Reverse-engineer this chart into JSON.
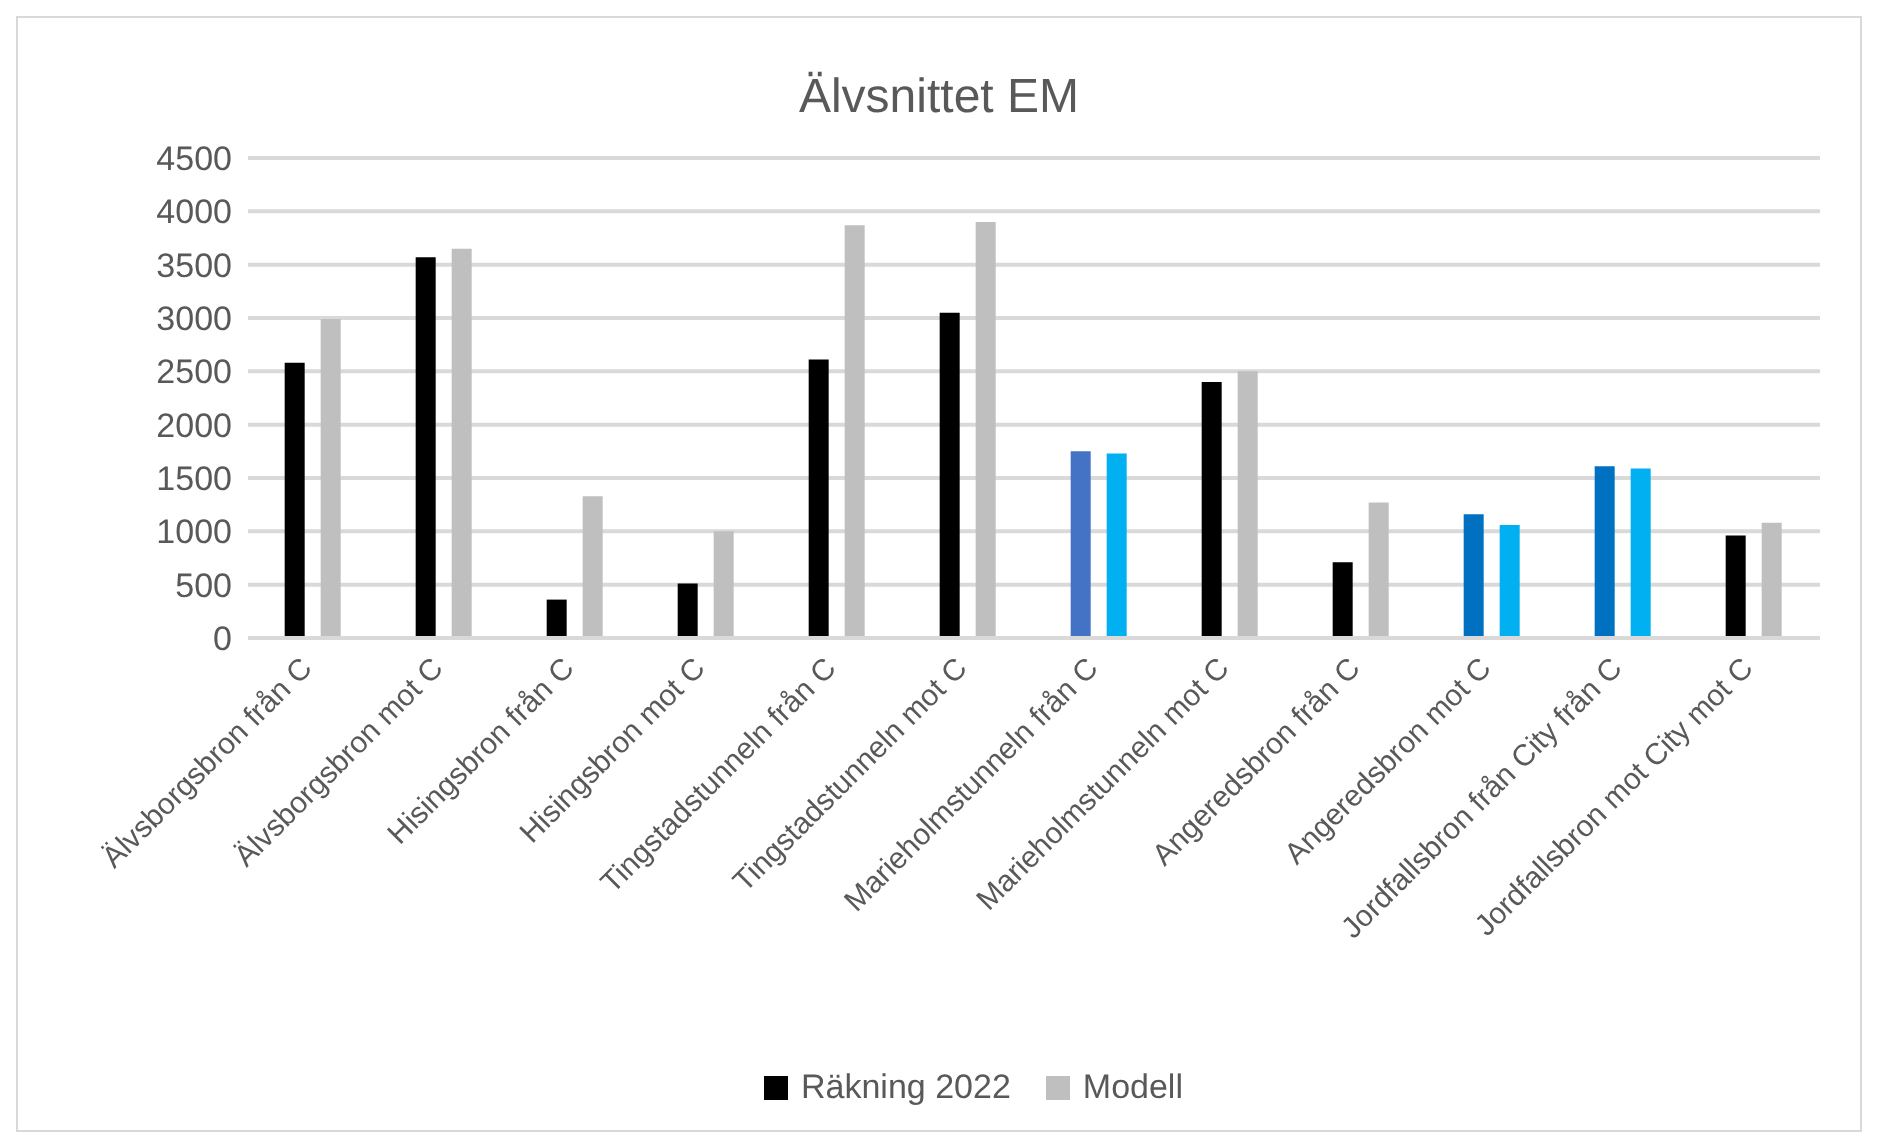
{
  "chart_data": {
    "type": "bar",
    "title": "Älvsnittet EM",
    "categories": [
      "Älvsborgsbron från C",
      "Älvsborgsbron mot C",
      "Hisingsbron från C",
      "Hisingsbron mot C",
      "Tingstadstunneln från C",
      "Tingstadstunneln mot C",
      "Marieholmstunneln från C",
      "Marieholmstunneln mot C",
      "Angeredsbron från C",
      "Angeredsbron mot C",
      "Jordfallsbron från City från C",
      "Jordfallsbron mot City mot C"
    ],
    "series": [
      {
        "name": "Räkning 2022",
        "color": "#000000",
        "colors": [
          "#000000",
          "#000000",
          "#000000",
          "#000000",
          "#000000",
          "#000000",
          "#4472c4",
          "#000000",
          "#000000",
          "#0070c0",
          "#0070c0",
          "#000000"
        ],
        "values": [
          2580,
          3570,
          360,
          510,
          2610,
          3050,
          1750,
          2400,
          710,
          1160,
          1610,
          960
        ]
      },
      {
        "name": "Modell",
        "color": "#bfbfbf",
        "colors": [
          "#bfbfbf",
          "#bfbfbf",
          "#bfbfbf",
          "#bfbfbf",
          "#bfbfbf",
          "#bfbfbf",
          "#00b0f0",
          "#bfbfbf",
          "#bfbfbf",
          "#00b0f0",
          "#00b0f0",
          "#bfbfbf"
        ],
        "values": [
          2990,
          3650,
          1330,
          1000,
          3870,
          3900,
          1730,
          2500,
          1270,
          1060,
          1590,
          1080
        ]
      }
    ],
    "ylim": [
      0,
      4500
    ],
    "yticks": [
      0,
      500,
      1000,
      1500,
      2000,
      2500,
      3000,
      3500,
      4000,
      4500
    ],
    "grid": "y",
    "legend": "bottom"
  }
}
